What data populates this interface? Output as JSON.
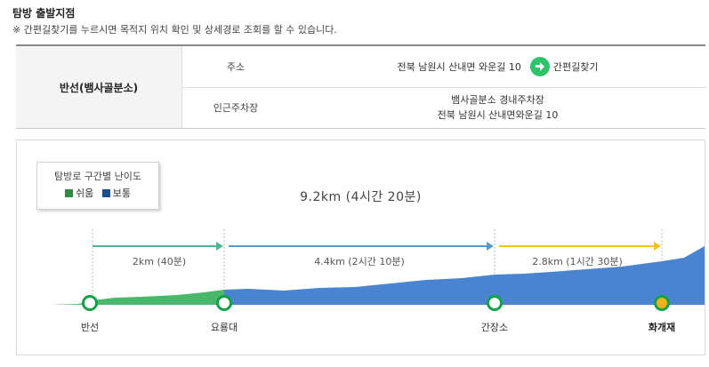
{
  "header": {
    "title": "탐방 출발지점",
    "notice": "※ 간편길찾기를 누르시면 목적지 위치 확인 및 상세경로 조회를 할 수 있습니다."
  },
  "start_info": {
    "name": "반선(뱀사골분소)",
    "address_label": "주소",
    "address": "전북 남원시 산내면 와운길 10",
    "nav_button": "간편길찾기",
    "parking_label": "인근주차장",
    "parking_line1": "뱀사골분소 경내주차장",
    "parking_line2": "전북 남원시 산내면와운길 10"
  },
  "legend": {
    "title": "탐방로 구간별 난이도",
    "easy": "쉬움",
    "normal": "보통",
    "easy_color": "#2e8b46",
    "normal_color": "#1d4f8f"
  },
  "course": {
    "total": "9.2km (4시간 20분)",
    "segments": [
      {
        "label": "2km (40분)",
        "color": "#4fb596"
      },
      {
        "label": "4.4km (2시간 10분)",
        "color": "#5a98c9"
      },
      {
        "label": "2.8km (1시간 30분)",
        "color": "#f0c21a"
      }
    ],
    "points": [
      {
        "name": "반선",
        "bold": false
      },
      {
        "name": "요룡대",
        "bold": false
      },
      {
        "name": "간장소",
        "bold": false
      },
      {
        "name": "화개재",
        "bold": true
      }
    ]
  },
  "colors": {
    "easy_fill": "#48b96a",
    "normal_fill": "#4a84d0",
    "station_ring": "#13a04a",
    "end_fill": "#f2b11c"
  }
}
